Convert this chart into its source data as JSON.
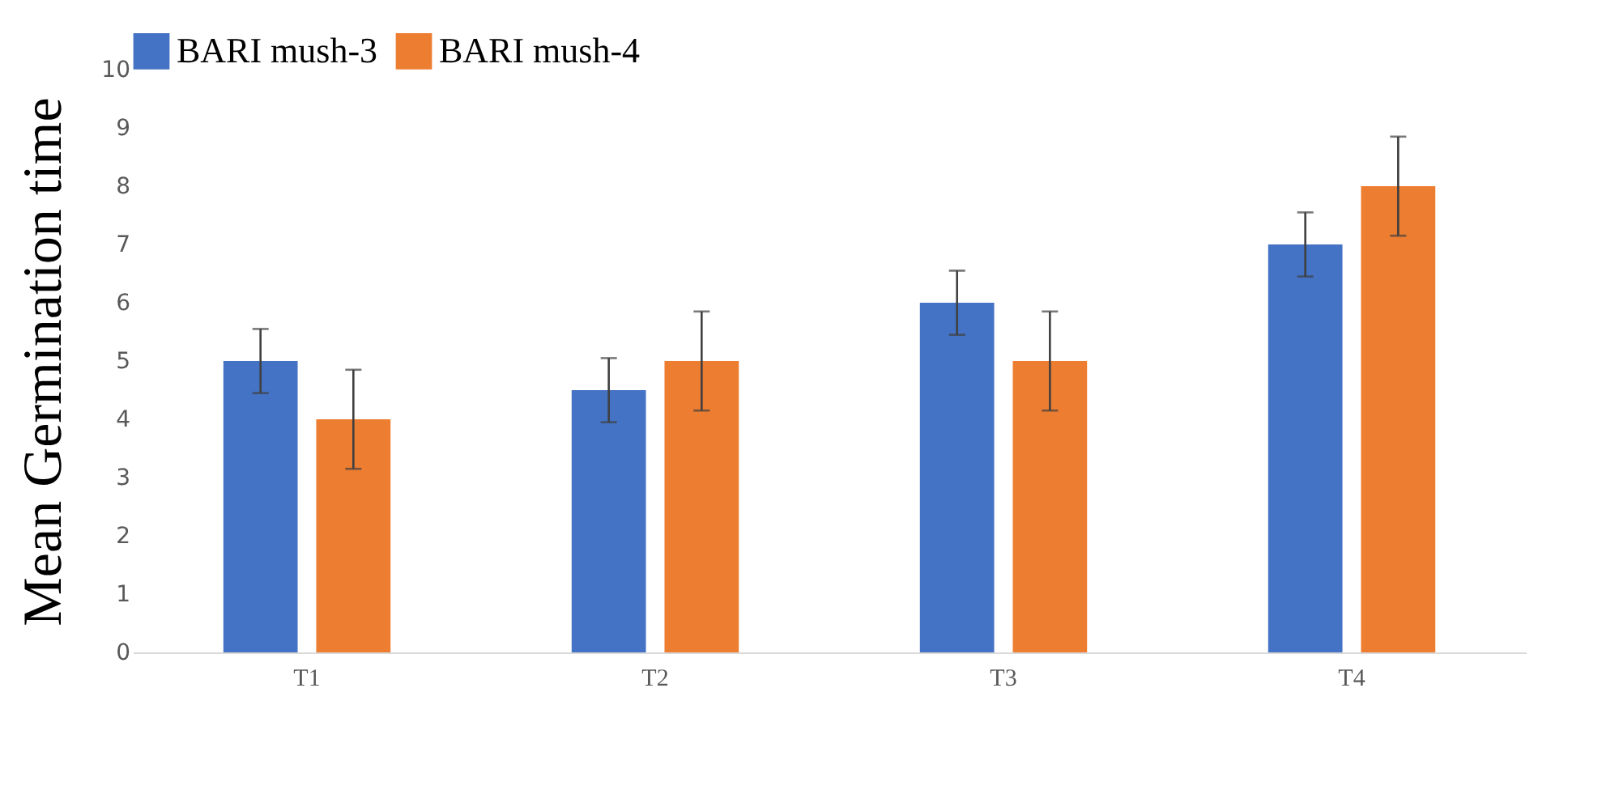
{
  "chart_data": {
    "type": "bar",
    "ylabel": "Mean Germination time",
    "categories": [
      "T1",
      "T2",
      "T3",
      "T4"
    ],
    "series": [
      {
        "name": "BARI mush-3",
        "color": "#4472c4",
        "values": [
          5,
          4.5,
          6,
          7
        ],
        "errors": [
          0.55,
          0.55,
          0.55,
          0.55
        ]
      },
      {
        "name": "BARI mush-4",
        "color": "#ed7d31",
        "values": [
          4,
          5,
          5,
          8
        ],
        "errors": [
          0.85,
          0.85,
          0.85,
          0.85
        ]
      }
    ],
    "ylim": [
      0,
      10
    ],
    "yticks": [
      0,
      1,
      2,
      3,
      4,
      5,
      6,
      7,
      8,
      9,
      10
    ],
    "grid": false,
    "legend": "top"
  }
}
